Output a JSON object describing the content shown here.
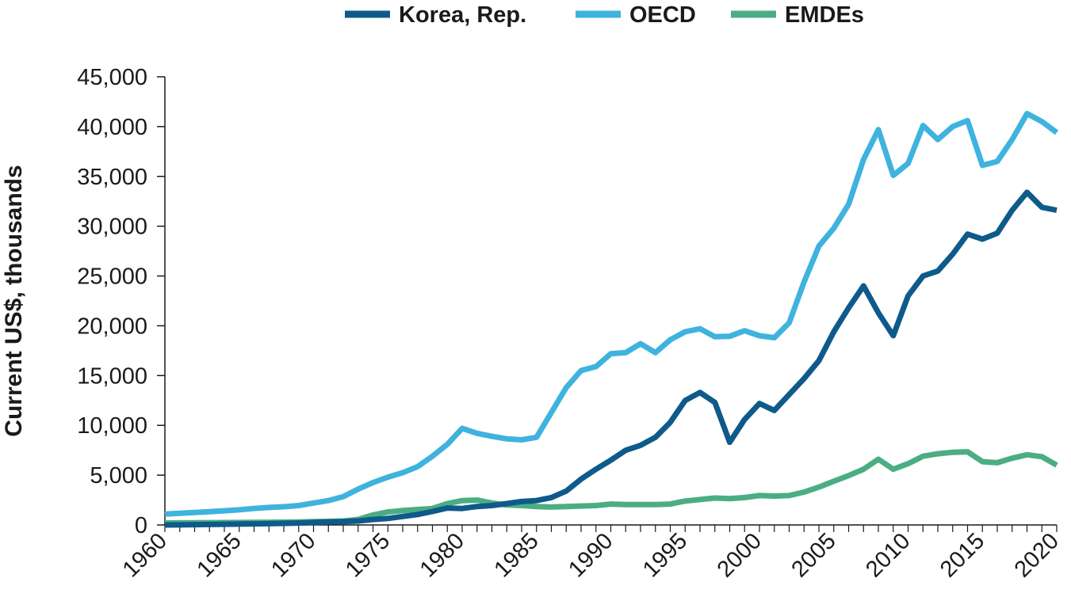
{
  "chart_data": {
    "type": "line",
    "title": "",
    "xlabel": "",
    "ylabel": "Current US$, thousands",
    "xlim": [
      1960,
      2020
    ],
    "ylim": [
      0,
      45000
    ],
    "y_ticks": [
      "0",
      "5,000",
      "10,000",
      "15,000",
      "20,000",
      "25,000",
      "30,000",
      "35,000",
      "40,000",
      "45,000"
    ],
    "x_ticks": [
      "1960",
      "1965",
      "1970",
      "1975",
      "1980",
      "1985",
      "1990",
      "1995",
      "2000",
      "2005",
      "2010",
      "2015",
      "2020"
    ],
    "legend_position": "top-center",
    "grid": false,
    "x": [
      1960,
      1961,
      1962,
      1963,
      1964,
      1965,
      1966,
      1967,
      1968,
      1969,
      1970,
      1971,
      1972,
      1973,
      1974,
      1975,
      1976,
      1977,
      1978,
      1979,
      1980,
      1981,
      1982,
      1983,
      1984,
      1985,
      1986,
      1987,
      1988,
      1989,
      1990,
      1991,
      1992,
      1993,
      1994,
      1995,
      1996,
      1997,
      1998,
      1999,
      2000,
      2001,
      2002,
      2003,
      2004,
      2005,
      2006,
      2007,
      2008,
      2009,
      2010,
      2011,
      2012,
      2013,
      2014,
      2015,
      2016,
      2017,
      2018,
      2019,
      2020
    ],
    "series": [
      {
        "name": "Korea, Rep.",
        "color": "#0e5a8a",
        "values": [
          0,
          10,
          30,
          50,
          70,
          90,
          110,
          130,
          160,
          190,
          250,
          300,
          330,
          400,
          550,
          650,
          850,
          1050,
          1350,
          1700,
          1650,
          1850,
          1950,
          2150,
          2350,
          2450,
          2750,
          3400,
          4600,
          5600,
          6500,
          7500,
          8000,
          8800,
          10300,
          12500,
          13300,
          12300,
          8300,
          10600,
          12200,
          11500,
          13100,
          14700,
          16500,
          19400,
          21800,
          24000,
          21300,
          19000,
          23000,
          25000,
          25500,
          27200,
          29200,
          28700,
          29300,
          31600,
          33400,
          31900,
          31600
        ]
      },
      {
        "name": "OECD",
        "color": "#3fb3de",
        "values": [
          1100,
          1180,
          1250,
          1330,
          1420,
          1520,
          1650,
          1760,
          1830,
          1950,
          2200,
          2450,
          2850,
          3600,
          4250,
          4800,
          5250,
          5850,
          6900,
          8100,
          9700,
          9200,
          8900,
          8650,
          8550,
          8800,
          11300,
          13800,
          15500,
          15900,
          17200,
          17300,
          18200,
          17300,
          18600,
          19400,
          19700,
          18900,
          18950,
          19500,
          19000,
          18800,
          20300,
          24400,
          28000,
          29800,
          32200,
          36700,
          39700,
          35100,
          36300,
          40100,
          38700,
          40000,
          40600,
          36100,
          36500,
          38700,
          41300,
          40500,
          39400
        ]
      },
      {
        "name": "EMDEs",
        "color": "#4aae82",
        "values": [
          200,
          210,
          220,
          230,
          240,
          250,
          260,
          270,
          280,
          300,
          330,
          360,
          400,
          550,
          1000,
          1300,
          1450,
          1550,
          1650,
          2150,
          2450,
          2500,
          2200,
          2000,
          1950,
          1850,
          1800,
          1850,
          1900,
          1950,
          2100,
          2050,
          2050,
          2050,
          2100,
          2400,
          2550,
          2700,
          2650,
          2750,
          2950,
          2900,
          2950,
          3300,
          3800,
          4400,
          4950,
          5600,
          6600,
          5600,
          6150,
          6900,
          7150,
          7300,
          7350,
          6350,
          6250,
          6700,
          7050,
          6850,
          6000
        ]
      }
    ]
  }
}
